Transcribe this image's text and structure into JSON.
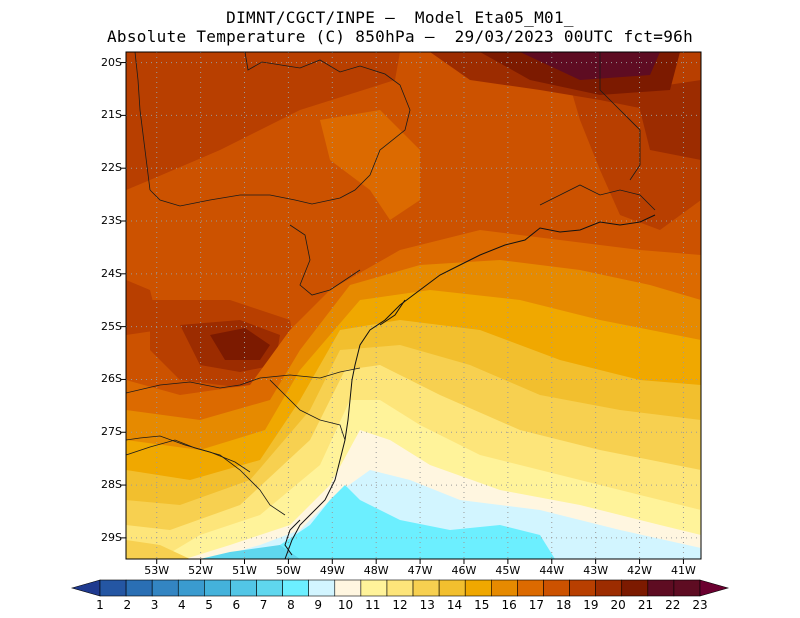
{
  "title": {
    "line1": "DIMNT/CGCT/INPE –  Model Eta05_M01_",
    "line2": "Absolute Temperature (C) 850hPa –  29/03/2023 00UTC fct=96h"
  },
  "map": {
    "lat_labels": [
      "20S",
      "21S",
      "22S",
      "23S",
      "24S",
      "25S",
      "26S",
      "27S",
      "28S",
      "29S"
    ],
    "lat_values": [
      -20,
      -21,
      -22,
      -23,
      -24,
      -25,
      -26,
      -27,
      -28,
      -29
    ],
    "lon_labels": [
      "53W",
      "52W",
      "51W",
      "50W",
      "49W",
      "48W",
      "47W",
      "46W",
      "45W",
      "44W",
      "43W",
      "42W",
      "41W"
    ],
    "lon_values": [
      -53,
      -52,
      -51,
      -50,
      -49,
      -48,
      -47,
      -46,
      -45,
      -44,
      -43,
      -42,
      -41
    ],
    "lon_range": [
      -53.7,
      -40.6
    ],
    "lat_range": [
      -29.4,
      -19.8
    ]
  },
  "colorbar": {
    "labels": [
      "1",
      "2",
      "3",
      "4",
      "5",
      "6",
      "7",
      "8",
      "9",
      "10",
      "11",
      "12",
      "13",
      "14",
      "15",
      "16",
      "17",
      "18",
      "19",
      "20",
      "21",
      "22",
      "23"
    ],
    "colors": [
      "#1f3a8f",
      "#2456a3",
      "#2a6fb4",
      "#3385c2",
      "#3a9bcf",
      "#44b2db",
      "#52c6e6",
      "#5fd7ee",
      "#6cefff",
      "#d2f5ff",
      "#fff6e0",
      "#fff39a",
      "#fde57a",
      "#f7d050",
      "#f2bf2e",
      "#f0a800",
      "#e68a00",
      "#dc6a00",
      "#cc5200",
      "#b83f00",
      "#9c2c00",
      "#7c1a00",
      "#5e0c22",
      "#6b0030"
    ],
    "interval_c": 1
  }
}
